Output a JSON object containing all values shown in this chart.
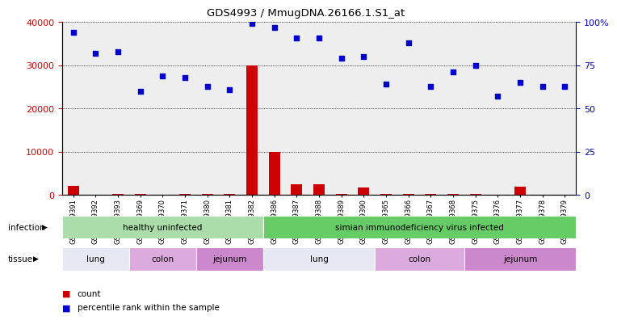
{
  "title": "GDS4993 / MmugDNA.26166.1.S1_at",
  "samples": [
    "GSM1249391",
    "GSM1249392",
    "GSM1249393",
    "GSM1249369",
    "GSM1249370",
    "GSM1249371",
    "GSM1249380",
    "GSM1249381",
    "GSM1249382",
    "GSM1249386",
    "GSM1249387",
    "GSM1249388",
    "GSM1249389",
    "GSM1249390",
    "GSM1249365",
    "GSM1249366",
    "GSM1249367",
    "GSM1249368",
    "GSM1249375",
    "GSM1249376",
    "GSM1249377",
    "GSM1249378",
    "GSM1249379"
  ],
  "counts": [
    2200,
    150,
    350,
    200,
    150,
    200,
    200,
    200,
    30000,
    10000,
    2500,
    2500,
    300,
    1800,
    300,
    200,
    200,
    200,
    200,
    150,
    2000,
    150,
    150
  ],
  "percentiles": [
    94,
    82,
    83,
    60,
    69,
    68,
    63,
    61,
    99,
    97,
    91,
    91,
    79,
    80,
    64,
    88,
    63,
    71,
    75,
    57,
    65,
    63,
    63
  ],
  "ylim_left": [
    0,
    40000
  ],
  "ylim_right": [
    0,
    100
  ],
  "yticks_left": [
    0,
    10000,
    20000,
    30000,
    40000
  ],
  "yticks_right": [
    0,
    25,
    50,
    75,
    100
  ],
  "left_color": "#cc0000",
  "right_color": "#0000cc",
  "bar_color": "#cc0000",
  "dot_color": "#0000cc",
  "infection_groups": [
    {
      "label": "healthy uninfected",
      "start": 0,
      "end": 8,
      "color": "#aaddaa"
    },
    {
      "label": "simian immunodeficiency virus infected",
      "start": 9,
      "end": 22,
      "color": "#66cc66"
    }
  ],
  "tissue_groups": [
    {
      "label": "lung",
      "start": 0,
      "end": 2,
      "color": "#e8e8f5"
    },
    {
      "label": "colon",
      "start": 3,
      "end": 5,
      "color": "#ddaadd"
    },
    {
      "label": "jejunum",
      "start": 6,
      "end": 8,
      "color": "#cc88cc"
    },
    {
      "label": "lung",
      "start": 9,
      "end": 13,
      "color": "#e8e8f5"
    },
    {
      "label": "colon",
      "start": 14,
      "end": 17,
      "color": "#ddaadd"
    },
    {
      "label": "jejunum",
      "start": 18,
      "end": 22,
      "color": "#cc88cc"
    }
  ],
  "legend_count_label": "count",
  "legend_pct_label": "percentile rank within the sample",
  "infection_label": "infection",
  "tissue_label": "tissue"
}
